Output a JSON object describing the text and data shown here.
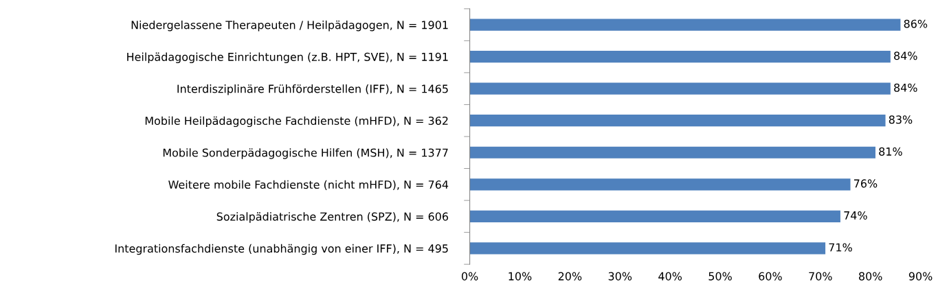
{
  "chart_data": {
    "type": "bar",
    "orientation": "horizontal",
    "categories": [
      "Niedergelassene Therapeuten / Heilpädagogen, N = 1901",
      "Heilpädagogische Einrichtungen (z.B. HPT, SVE), N = 1191",
      "Interdisziplinäre Frühförderstellen (IFF), N = 1465",
      "Mobile Heilpädagogische Fachdienste (mHFD), N = 362",
      "Mobile Sonderpädagogische Hilfen (MSH), N = 1377",
      "Weitere mobile Fachdienste (nicht mHFD), N = 764",
      "Sozialpädiatrische Zentren (SPZ), N = 606",
      "Integrationsfachdienste (unabhängig von einer IFF), N = 495"
    ],
    "values": [
      86,
      84,
      84,
      83,
      81,
      76,
      74,
      71
    ],
    "value_labels": [
      "86%",
      "84%",
      "84%",
      "83%",
      "81%",
      "76%",
      "74%",
      "71%"
    ],
    "color": "#4f81bd",
    "xlim": [
      0,
      90
    ],
    "xticks": [
      {
        "value": 0,
        "label": "0%"
      },
      {
        "value": 10,
        "label": "10%"
      },
      {
        "value": 20,
        "label": "20%"
      },
      {
        "value": 30,
        "label": "30%"
      },
      {
        "value": 40,
        "label": "40%"
      },
      {
        "value": 50,
        "label": "50%"
      },
      {
        "value": 60,
        "label": "60%"
      },
      {
        "value": 70,
        "label": "70%"
      },
      {
        "value": 80,
        "label": "80%"
      },
      {
        "value": 90,
        "label": "90%"
      }
    ],
    "grid": false,
    "legend": false
  }
}
